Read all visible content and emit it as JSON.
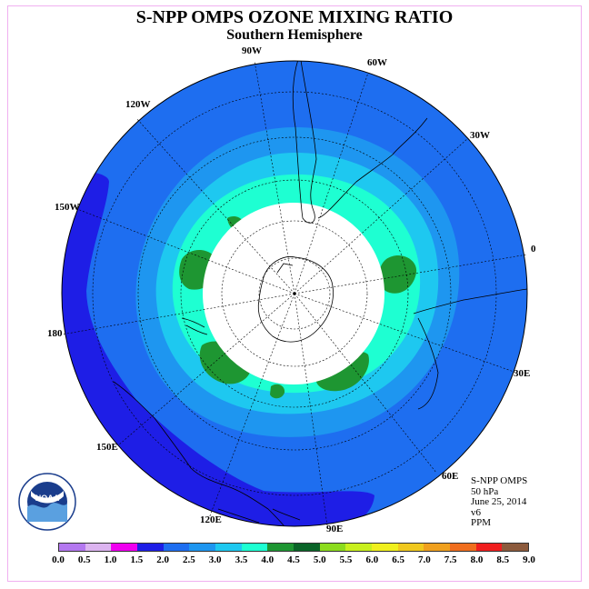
{
  "header": {
    "title": "S-NPP OMPS OZONE MIXING RATIO",
    "subtitle": "Southern Hemisphere"
  },
  "map": {
    "projection": "polar-stereographic-south",
    "longitude_labels": [
      "90W",
      "60W",
      "30W",
      "0",
      "30E",
      "60E",
      "90E",
      "120E",
      "150E",
      "180",
      "150W",
      "120W"
    ],
    "ocean_colors": {
      "band_1_5_2_0": "#1e1ee6",
      "band_2_0_2_5": "#1e6ef0",
      "band_2_5_3_0": "#1e96f0",
      "band_3_0_3_5": "#1ec8f0",
      "band_3_5_4_0": "#1effd2",
      "band_4_0_4_5": "#1e9632",
      "band_4_5_5_0": "#0a7832",
      "polar_night_mask": "#ffffff"
    }
  },
  "info": {
    "source": "S-NPP OMPS",
    "level": "50 hPa",
    "date": "June 25, 2014",
    "version": "v6",
    "units": "PPM"
  },
  "logo": {
    "text": "NOAA",
    "ring_text": "NATIONAL OCEANIC AND ATMOSPHERIC ADMINISTRATION",
    "ring_text_bottom": "U.S. DEPARTMENT OF COMMERCE"
  },
  "colorbar": {
    "ticks": [
      "0.0",
      "0.5",
      "1.0",
      "1.5",
      "2.0",
      "2.5",
      "3.0",
      "3.5",
      "4.0",
      "4.5",
      "5.0",
      "5.5",
      "6.0",
      "6.5",
      "7.0",
      "7.5",
      "8.0",
      "8.5",
      "9.0"
    ],
    "colors": [
      "#b478f0",
      "#dcb4f0",
      "#f000f0",
      "#1e1ee6",
      "#1e6ef0",
      "#1e96f0",
      "#1ec8f0",
      "#1effd2",
      "#1e9632",
      "#0a6428",
      "#8cdc1e",
      "#c8f01e",
      "#f0f01e",
      "#f0c81e",
      "#f0a01e",
      "#f06e1e",
      "#f01e1e",
      "#8c5a3c"
    ]
  }
}
